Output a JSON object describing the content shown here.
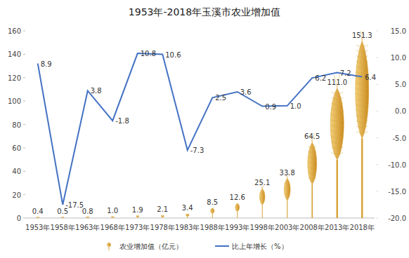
{
  "chart_data": {
    "type": "bar",
    "title": "1953年-2018年玉溪市农业增加值",
    "categories": [
      "1953年",
      "1958年",
      "1963年",
      "1968年",
      "1973年",
      "1978年",
      "1983年",
      "1988年",
      "1993年",
      "1998年",
      "2003年",
      "2008年",
      "2013年",
      "2018年"
    ],
    "series": [
      {
        "name": "农业增加值（亿元）",
        "type": "bar",
        "color": "#d9a43a",
        "values": [
          0.4,
          0.5,
          0.8,
          1.0,
          1.9,
          2.1,
          3.4,
          8.5,
          12.6,
          25.1,
          33.8,
          64.5,
          111.0,
          151.3
        ],
        "value_labels": [
          "0.4",
          "0.5",
          "0.8",
          "1.0",
          "1.9",
          "2.1",
          "3.4",
          "8.5",
          "12.6",
          "25.1",
          "33.8",
          "64.5",
          "111.0",
          "151.3"
        ]
      },
      {
        "name": "比上年增长（%）",
        "type": "line",
        "axis": "y2",
        "color": "#4472c4",
        "marker": "none",
        "line_style": "solid",
        "values": [
          8.9,
          -17.5,
          3.8,
          -1.8,
          10.8,
          10.6,
          -7.3,
          2.5,
          3.6,
          0.9,
          1.0,
          6.2,
          7.2,
          6.4
        ],
        "value_labels": [
          "8.9",
          "-17.5",
          "3.8",
          "-1.8",
          "10.8",
          "10.6",
          "-7.3",
          "2.5",
          "3.6",
          "0.9",
          "1.0",
          "6.2",
          "7.2",
          "6.4"
        ]
      }
    ],
    "ylim": [
      0,
      160
    ],
    "yticks": [
      0,
      20,
      40,
      60,
      80,
      100,
      120,
      140,
      160
    ],
    "y2lim": [
      -20,
      15
    ],
    "y2ticks": [
      {
        "value": -20,
        "label": "-20.0"
      },
      {
        "value": -15,
        "label": "-15.0"
      },
      {
        "value": -10,
        "label": "-10.0"
      },
      {
        "value": -5,
        "label": "-5.0"
      },
      {
        "value": 0,
        "label": "0.0"
      },
      {
        "value": 5,
        "label": "5.0"
      },
      {
        "value": 10,
        "label": "10.0"
      },
      {
        "value": 15,
        "label": "15.0"
      }
    ],
    "grid": false,
    "legend": "bottom",
    "data_labels": true
  }
}
